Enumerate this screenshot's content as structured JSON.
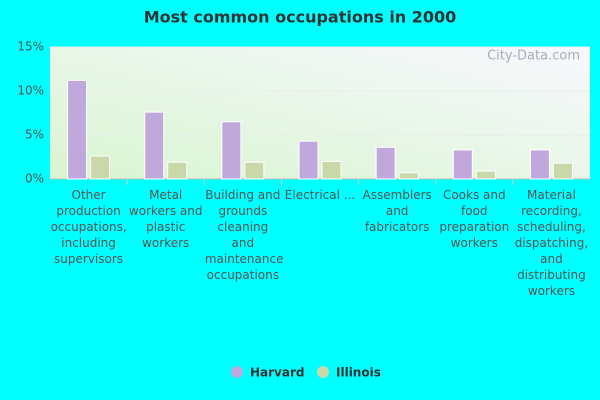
{
  "chart_data": {
    "type": "bar",
    "title": "Most common occupations in 2000",
    "watermark": "City-Data.com",
    "categories": [
      "Other production occupations, including supervisors",
      "Metal workers and plastic workers",
      "Building and grounds cleaning and maintenance occupations",
      "Electrical ...",
      "Assemblers and fabricators",
      "Cooks and food preparation workers",
      "Material recording, scheduling, dispatching, and distributing workers"
    ],
    "series": [
      {
        "name": "Harvard",
        "color": "#c0a8dc",
        "values": [
          11.2,
          7.6,
          6.5,
          4.3,
          3.6,
          3.3,
          3.3
        ]
      },
      {
        "name": "Illinois",
        "color": "#c8d8a8",
        "values": [
          2.6,
          1.9,
          1.9,
          2.0,
          0.7,
          0.9,
          1.8
        ]
      }
    ],
    "ylim": [
      0,
      15
    ],
    "yticks": [
      {
        "value": 0,
        "label": "0%"
      },
      {
        "value": 5,
        "label": "5%"
      },
      {
        "value": 10,
        "label": "10%"
      },
      {
        "value": 15,
        "label": "15%"
      }
    ],
    "grid": true
  }
}
